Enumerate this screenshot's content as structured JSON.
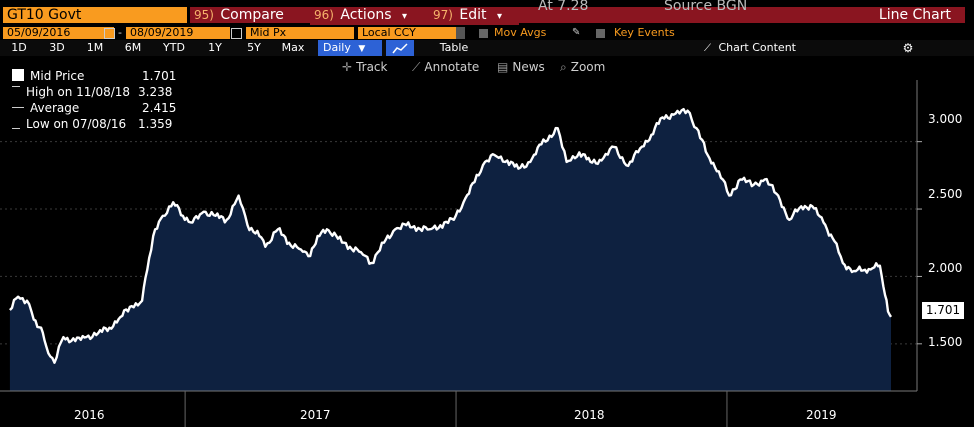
{
  "header": {
    "security": "GT10 Govt",
    "compare": {
      "num": "95)",
      "label": "Compare"
    },
    "actions": {
      "num": "96)",
      "label": "Actions",
      "caret": "▾"
    },
    "edit": {
      "num": "97)",
      "label": "Edit",
      "caret": "▾"
    },
    "partial_at": "At 7.28",
    "partial_source": "Source BGN",
    "view": "Line Chart"
  },
  "options": {
    "start_date": "05/09/2016",
    "end_date": "08/09/2019",
    "date_sep": "-",
    "field": "Mid Px",
    "currency": "Local CCY",
    "mov_avgs": "Mov Avgs",
    "key_events": "Key Events"
  },
  "periods": [
    "1D",
    "3D",
    "1M",
    "6M",
    "YTD",
    "1Y",
    "5Y",
    "Max"
  ],
  "frequency": "Daily",
  "table_label": "Table",
  "chart_content_label": "Chart Content",
  "toolbar": {
    "track": "Track",
    "annotate": "Annotate",
    "news": "News",
    "zoom": "Zoom"
  },
  "legend": {
    "mid_label": "Mid Price",
    "mid_value": "1.701",
    "high_label": "High on 11/08/18",
    "high_value": "3.238",
    "avg_label": "Average",
    "avg_value": "2.415",
    "low_label": "Low on 07/08/16",
    "low_value": "1.359"
  },
  "colors": {
    "accent": "#f99b1f",
    "button": "#8a1520",
    "fill": "#0e2140",
    "line": "#ffffff",
    "active": "#2d62d6"
  },
  "chart_data": {
    "type": "area",
    "x": [
      "2016-05-09",
      "2016-05-20",
      "2016-06-01",
      "2016-06-10",
      "2016-06-20",
      "2016-06-27",
      "2016-07-08",
      "2016-07-20",
      "2016-08-05",
      "2016-08-20",
      "2016-09-05",
      "2016-09-20",
      "2016-10-05",
      "2016-10-20",
      "2016-11-03",
      "2016-11-10",
      "2016-11-18",
      "2016-12-01",
      "2016-12-15",
      "2016-12-28",
      "2017-01-10",
      "2017-01-25",
      "2017-02-10",
      "2017-02-25",
      "2017-03-13",
      "2017-03-25",
      "2017-04-10",
      "2017-04-18",
      "2017-05-05",
      "2017-05-20",
      "2017-06-05",
      "2017-06-15",
      "2017-06-30",
      "2017-07-10",
      "2017-07-25",
      "2017-08-10",
      "2017-08-25",
      "2017-09-08",
      "2017-09-25",
      "2017-10-10",
      "2017-10-25",
      "2017-11-10",
      "2017-11-25",
      "2017-12-10",
      "2017-12-28",
      "2018-01-10",
      "2018-01-25",
      "2018-02-08",
      "2018-02-21",
      "2018-03-10",
      "2018-03-25",
      "2018-04-10",
      "2018-04-25",
      "2018-05-17",
      "2018-05-29",
      "2018-06-15",
      "2018-06-30",
      "2018-07-15",
      "2018-08-01",
      "2018-08-20",
      "2018-09-05",
      "2018-09-20",
      "2018-10-05",
      "2018-10-20",
      "2018-11-08",
      "2018-11-20",
      "2018-12-05",
      "2018-12-20",
      "2019-01-03",
      "2019-01-18",
      "2019-02-05",
      "2019-02-20",
      "2019-03-10",
      "2019-03-25",
      "2019-04-10",
      "2019-04-25",
      "2019-05-10",
      "2019-05-25",
      "2019-06-05",
      "2019-06-20",
      "2019-07-05",
      "2019-07-15",
      "2019-07-25",
      "2019-08-01",
      "2019-08-05",
      "2019-08-09"
    ],
    "values": [
      1.75,
      1.85,
      1.82,
      1.68,
      1.62,
      1.48,
      1.36,
      1.55,
      1.52,
      1.55,
      1.58,
      1.62,
      1.7,
      1.78,
      1.82,
      2.05,
      2.3,
      2.45,
      2.55,
      2.45,
      2.4,
      2.48,
      2.45,
      2.42,
      2.6,
      2.38,
      2.3,
      2.22,
      2.35,
      2.25,
      2.2,
      2.15,
      2.3,
      2.35,
      2.28,
      2.22,
      2.18,
      2.1,
      2.25,
      2.35,
      2.38,
      2.36,
      2.35,
      2.38,
      2.42,
      2.55,
      2.7,
      2.85,
      2.9,
      2.86,
      2.8,
      2.85,
      2.98,
      3.1,
      2.85,
      2.92,
      2.85,
      2.86,
      2.96,
      2.82,
      2.95,
      3.05,
      3.18,
      3.2,
      3.23,
      3.1,
      2.9,
      2.78,
      2.6,
      2.72,
      2.68,
      2.72,
      2.6,
      2.42,
      2.52,
      2.52,
      2.4,
      2.26,
      2.1,
      2.04,
      2.05,
      2.06,
      2.08,
      1.86,
      1.74,
      1.7
    ],
    "ylim": [
      1.15,
      3.45
    ],
    "yticks": [
      "1.500",
      "2.000",
      "2.500",
      "3.000"
    ],
    "year_labels": [
      "2016",
      "2017",
      "2018",
      "2019"
    ],
    "last_value": "1.701",
    "grid": true
  }
}
